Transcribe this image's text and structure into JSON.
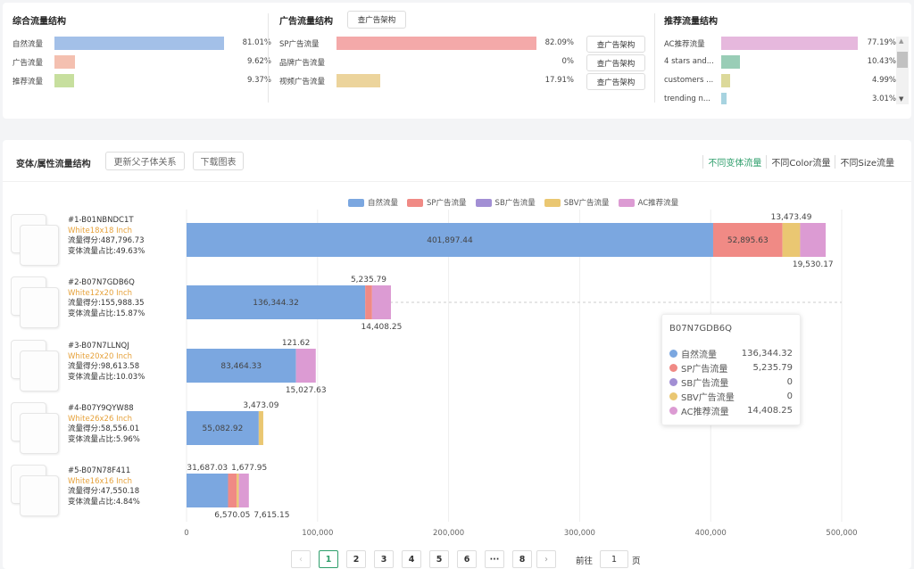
{
  "overall": {
    "title": "综合流量结构",
    "items": [
      {
        "label": "自然流量",
        "pct": "81.01%",
        "value": 81.01,
        "color": "#a3c0e8"
      },
      {
        "label": "广告流量",
        "pct": "9.62%",
        "value": 9.62,
        "color": "#f4c0b0"
      },
      {
        "label": "推荐流量",
        "pct": "9.37%",
        "value": 9.37,
        "color": "#c7df9e"
      }
    ]
  },
  "ads": {
    "title": "广告流量结构",
    "button": "查广告架构",
    "items": [
      {
        "label": "SP广告流量",
        "pct": "82.09%",
        "value": 82.09,
        "color": "#f4a9a9",
        "button": "查广告架构"
      },
      {
        "label": "品牌广告流量",
        "pct": "0%",
        "value": 0,
        "color": "#f4a9a9",
        "button": "查广告架构"
      },
      {
        "label": "视频广告流量",
        "pct": "17.91%",
        "value": 17.91,
        "color": "#ecd49c",
        "button": "查广告架构"
      }
    ]
  },
  "recommend": {
    "title": "推荐流量结构",
    "items": [
      {
        "label": "AC推荐流量",
        "pct": "77.19%",
        "value": 77.19,
        "color": "#e6b8dd"
      },
      {
        "label": "4 stars and...",
        "pct": "10.43%",
        "value": 10.43,
        "color": "#99cdb6"
      },
      {
        "label": "customers ...",
        "pct": "4.99%",
        "value": 4.99,
        "color": "#dcd99a"
      },
      {
        "label": "trending n...",
        "pct": "3.01%",
        "value": 3.01,
        "color": "#a7d3e0"
      }
    ]
  },
  "variant": {
    "title": "变体/属性流量结构",
    "update_button": "更新父子体关系",
    "download_button": "下载图表",
    "tabs": [
      {
        "label": "不同变体流量",
        "active": true
      },
      {
        "label": "不同Color流量",
        "active": false
      },
      {
        "label": "不同Size流量",
        "active": false
      }
    ],
    "products": [
      {
        "name": "#1-B01NBNDC1T",
        "attr": "White18x18 Inch",
        "score": "流量得分:487,796.73",
        "share": "变体流量占比:49.63%"
      },
      {
        "name": "#2-B07N7GDB6Q",
        "attr": "White12x20 Inch",
        "score": "流量得分:155,988.35",
        "share": "变体流量占比:15.87%"
      },
      {
        "name": "#3-B07N7LLNQJ",
        "attr": "White20x20 Inch",
        "score": "流量得分:98,613.58",
        "share": "变体流量占比:10.03%"
      },
      {
        "name": "#4-B07Y9QYW88",
        "attr": "White26x26 Inch",
        "score": "流量得分:58,556.01",
        "share": "变体流量占比:5.96%"
      },
      {
        "name": "#5-B07N78F411",
        "attr": "White16x16 Inch",
        "score": "流量得分:47,550.18",
        "share": "变体流量占比:4.84%"
      }
    ]
  },
  "chart_data": {
    "type": "bar",
    "orientation": "horizontal",
    "stacked": true,
    "categories": [
      "B01NBNDC1T",
      "B07N7GDB6Q",
      "B07N7LLNQJ",
      "B07Y9QYW88",
      "B07N78F411"
    ],
    "series": [
      {
        "name": "自然流量",
        "color": "#7ba7e0",
        "values": [
          401897.44,
          136344.32,
          83464.33,
          55082.92,
          31687.03
        ]
      },
      {
        "name": "SP广告流量",
        "color": "#f08a85",
        "values": [
          52895.63,
          5235.79,
          121.62,
          0,
          6570.05
        ]
      },
      {
        "name": "SB广告流量",
        "color": "#a28fd4",
        "values": [
          0,
          0,
          0,
          0,
          0
        ]
      },
      {
        "name": "SBV广告流量",
        "color": "#eac772",
        "values": [
          13473.49,
          0,
          0,
          3473.09,
          1677.95
        ]
      },
      {
        "name": "AC推荐流量",
        "color": "#dc9bd3",
        "values": [
          19530.17,
          14408.25,
          15027.63,
          0,
          7615.15
        ]
      }
    ],
    "xlim": [
      0,
      500000
    ],
    "xticks": [
      "0",
      "100,000",
      "200,000",
      "300,000",
      "400,000",
      "500,000"
    ],
    "grid": true,
    "legend": "top"
  },
  "tooltip": {
    "title": "B07N7GDB6Q",
    "rows": [
      {
        "label": "自然流量",
        "value": "136,344.32",
        "color": "#7ba7e0"
      },
      {
        "label": "SP广告流量",
        "value": "5,235.79",
        "color": "#f08a85"
      },
      {
        "label": "SB广告流量",
        "value": "0",
        "color": "#a28fd4"
      },
      {
        "label": "SBV广告流量",
        "value": "0",
        "color": "#eac772"
      },
      {
        "label": "AC推荐流量",
        "value": "14,408.25",
        "color": "#dc9bd3"
      }
    ]
  },
  "pagination": {
    "pages": [
      "1",
      "2",
      "3",
      "4",
      "5",
      "6",
      "···",
      "8"
    ],
    "current": "1",
    "goto_label": "前往",
    "goto_value": "1",
    "page_suffix": "页"
  }
}
